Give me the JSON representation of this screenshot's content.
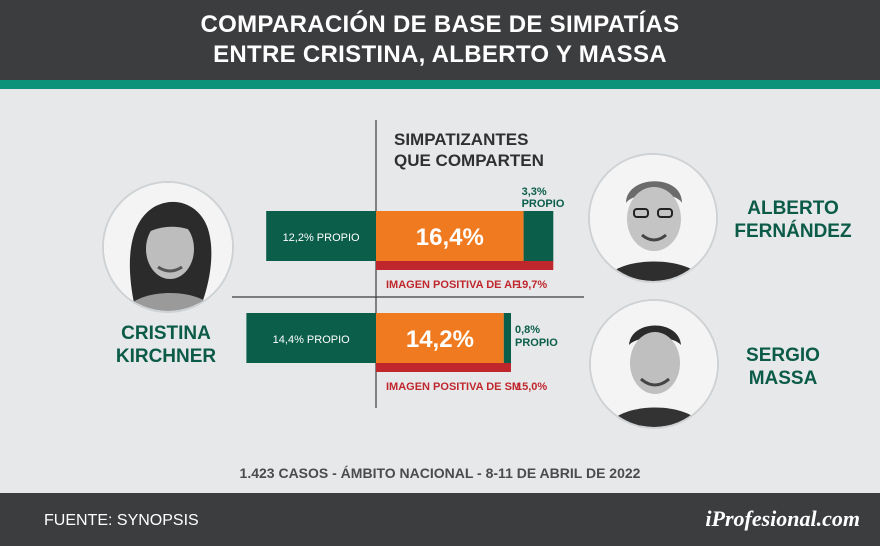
{
  "title_line1": "COMPARACIÓN DE BASE DE SIMPATÍAS",
  "title_line2": "ENTRE CRISTINA, ALBERTO Y MASSA",
  "axis_header_line1": "SIMPATIZANTES",
  "axis_header_line2": "QUE COMPARTEN",
  "footnote": "1.423 CASOS - ÁMBITO NACIONAL - 8-11 DE ABRIL DE 2022",
  "source": "FUENTE: SYNOPSIS",
  "brand": "iProfesional.com",
  "people": {
    "cristina": {
      "line1": "CRISTINA",
      "line2": "KIRCHNER"
    },
    "alberto": {
      "line1": "ALBERTO",
      "line2": "FERNÁNDEZ"
    },
    "massa": {
      "line1": "SERGIO",
      "line2": "MASSA"
    }
  },
  "colors": {
    "header_bg": "#3c3d3f",
    "accent_green": "#0c9279",
    "propio_green": "#0b5e4a",
    "shared_orange": "#f07a1f",
    "image_red": "#c0272d",
    "name_green": "#0b5b48"
  },
  "chart_data": {
    "type": "bar",
    "rows": [
      {
        "pair": "Cristina - Alberto",
        "left_propio": 12.2,
        "left_propio_label": "12,2% PROPIO",
        "shared": 16.4,
        "shared_label": "16,4%",
        "right_propio": 3.3,
        "right_propio_label_line1": "3,3%",
        "right_propio_label_line2": "PROPIO",
        "positive_image": 19.7,
        "positive_image_label": "IMAGEN POSITIVA DE AF",
        "positive_image_value_label": "19,7%"
      },
      {
        "pair": "Cristina - Massa",
        "left_propio": 14.4,
        "left_propio_label": "14,4% PROPIO",
        "shared": 14.2,
        "shared_label": "14,2%",
        "right_propio": 0.8,
        "right_propio_label_line1": "0,8%",
        "right_propio_label_line2": "PROPIO",
        "positive_image": 15.0,
        "positive_image_label": "IMAGEN POSITIVA DE SM",
        "positive_image_value_label": "15,0%"
      }
    ]
  }
}
